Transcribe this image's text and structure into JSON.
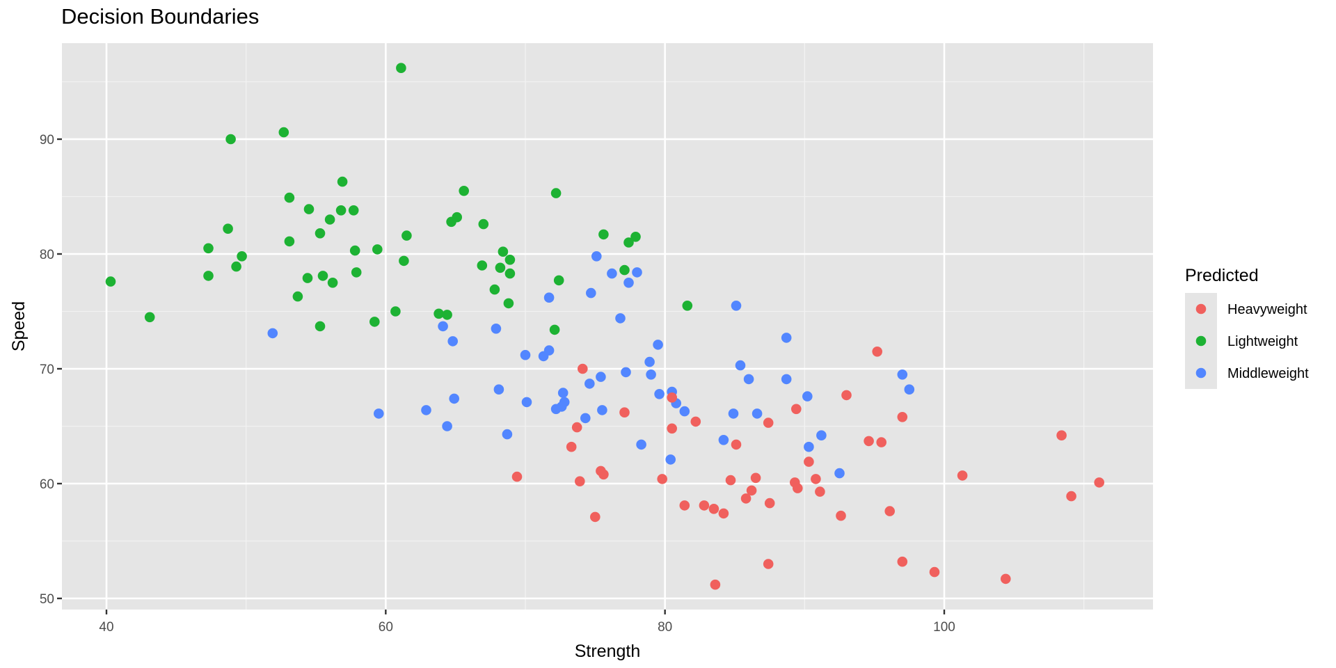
{
  "chart_data": {
    "type": "scatter",
    "title": "Decision Boundaries",
    "xlabel": "Strength",
    "ylabel": "Speed",
    "xlim": [
      36.5,
      114.5
    ],
    "ylim": [
      49.0,
      98.0
    ],
    "x_ticks": [
      40,
      60,
      80,
      100
    ],
    "y_ticks": [
      50,
      60,
      70,
      80,
      90
    ],
    "grid": true,
    "legend_position": "right",
    "legend": {
      "title": "Predicted",
      "entries": [
        {
          "name": "Heavyweight",
          "color": "#F8766D"
        },
        {
          "name": "Lightweight",
          "color": "#00BA38"
        },
        {
          "name": "Middleweight",
          "color": "#619CFF"
        }
      ]
    },
    "series": [
      {
        "name": "Lightweight",
        "color": "#1DB233",
        "points": [
          [
            40.3,
            77.6
          ],
          [
            43.1,
            74.5
          ],
          [
            47.3,
            80.5
          ],
          [
            47.3,
            78.1
          ],
          [
            48.7,
            82.2
          ],
          [
            48.9,
            90.0
          ],
          [
            49.3,
            78.9
          ],
          [
            49.7,
            79.8
          ],
          [
            52.7,
            90.6
          ],
          [
            53.1,
            84.9
          ],
          [
            53.1,
            81.1
          ],
          [
            53.7,
            76.3
          ],
          [
            54.4,
            77.9
          ],
          [
            54.5,
            83.9
          ],
          [
            55.3,
            81.8
          ],
          [
            55.3,
            73.7
          ],
          [
            55.5,
            78.1
          ],
          [
            56.0,
            83.0
          ],
          [
            56.2,
            77.5
          ],
          [
            56.8,
            83.8
          ],
          [
            56.9,
            86.3
          ],
          [
            57.7,
            83.8
          ],
          [
            57.8,
            80.3
          ],
          [
            57.9,
            78.4
          ],
          [
            59.2,
            74.1
          ],
          [
            59.4,
            80.4
          ],
          [
            60.7,
            75.0
          ],
          [
            61.1,
            96.2
          ],
          [
            61.3,
            79.4
          ],
          [
            61.5,
            81.6
          ],
          [
            63.8,
            74.8
          ],
          [
            64.4,
            74.7
          ],
          [
            64.7,
            82.8
          ],
          [
            65.1,
            83.2
          ],
          [
            65.6,
            85.5
          ],
          [
            66.9,
            79.0
          ],
          [
            67.0,
            82.6
          ],
          [
            67.8,
            76.9
          ],
          [
            68.2,
            78.8
          ],
          [
            68.4,
            80.2
          ],
          [
            68.8,
            75.7
          ],
          [
            68.9,
            79.5
          ],
          [
            68.9,
            78.3
          ],
          [
            72.1,
            73.4
          ],
          [
            72.2,
            85.3
          ],
          [
            72.4,
            77.7
          ],
          [
            75.6,
            81.7
          ],
          [
            77.1,
            78.6
          ],
          [
            77.4,
            81.0
          ],
          [
            77.9,
            81.5
          ],
          [
            81.6,
            75.5
          ]
        ]
      },
      {
        "name": "Middleweight",
        "color": "#5286FF",
        "points": [
          [
            51.9,
            73.1
          ],
          [
            59.5,
            66.1
          ],
          [
            62.9,
            66.4
          ],
          [
            64.1,
            73.7
          ],
          [
            64.4,
            65.0
          ],
          [
            64.8,
            72.4
          ],
          [
            64.9,
            67.4
          ],
          [
            67.9,
            73.5
          ],
          [
            68.1,
            68.2
          ],
          [
            68.7,
            64.3
          ],
          [
            70.0,
            71.2
          ],
          [
            70.1,
            67.1
          ],
          [
            71.3,
            71.1
          ],
          [
            71.7,
            71.6
          ],
          [
            71.7,
            76.2
          ],
          [
            72.2,
            66.5
          ],
          [
            72.6,
            66.7
          ],
          [
            72.7,
            67.9
          ],
          [
            72.8,
            67.1
          ],
          [
            74.3,
            65.7
          ],
          [
            74.6,
            68.7
          ],
          [
            74.7,
            76.6
          ],
          [
            75.1,
            79.8
          ],
          [
            75.4,
            69.3
          ],
          [
            75.5,
            66.4
          ],
          [
            76.2,
            78.3
          ],
          [
            76.8,
            74.4
          ],
          [
            77.2,
            69.7
          ],
          [
            77.4,
            77.5
          ],
          [
            78.0,
            78.4
          ],
          [
            78.3,
            63.4
          ],
          [
            78.9,
            70.6
          ],
          [
            79.0,
            69.5
          ],
          [
            79.5,
            72.1
          ],
          [
            79.6,
            67.8
          ],
          [
            80.4,
            62.1
          ],
          [
            80.5,
            68.0
          ],
          [
            80.8,
            67.0
          ],
          [
            81.4,
            66.3
          ],
          [
            84.2,
            63.8
          ],
          [
            84.9,
            66.1
          ],
          [
            85.1,
            75.5
          ],
          [
            85.4,
            70.3
          ],
          [
            86.0,
            69.1
          ],
          [
            86.6,
            66.1
          ],
          [
            88.7,
            72.7
          ],
          [
            88.7,
            69.1
          ],
          [
            90.2,
            67.6
          ],
          [
            90.3,
            63.2
          ],
          [
            91.2,
            64.2
          ],
          [
            92.5,
            60.9
          ],
          [
            97.0,
            69.5
          ],
          [
            97.5,
            68.2
          ]
        ]
      },
      {
        "name": "Heavyweight",
        "color": "#F0605D",
        "points": [
          [
            69.4,
            60.6
          ],
          [
            73.3,
            63.2
          ],
          [
            73.7,
            64.9
          ],
          [
            73.9,
            60.2
          ],
          [
            74.1,
            70.0
          ],
          [
            75.0,
            57.1
          ],
          [
            75.4,
            61.1
          ],
          [
            75.6,
            60.8
          ],
          [
            77.1,
            66.2
          ],
          [
            79.8,
            60.4
          ],
          [
            80.5,
            67.5
          ],
          [
            80.5,
            64.8
          ],
          [
            81.4,
            58.1
          ],
          [
            82.2,
            65.4
          ],
          [
            82.8,
            58.1
          ],
          [
            83.5,
            57.8
          ],
          [
            83.6,
            51.2
          ],
          [
            84.2,
            57.4
          ],
          [
            84.7,
            60.3
          ],
          [
            85.1,
            63.4
          ],
          [
            85.8,
            58.7
          ],
          [
            86.2,
            59.4
          ],
          [
            86.5,
            60.5
          ],
          [
            87.4,
            53.0
          ],
          [
            87.4,
            65.3
          ],
          [
            87.5,
            58.3
          ],
          [
            89.3,
            60.1
          ],
          [
            89.4,
            66.5
          ],
          [
            89.5,
            59.6
          ],
          [
            90.3,
            61.9
          ],
          [
            90.8,
            60.4
          ],
          [
            91.1,
            59.3
          ],
          [
            92.6,
            57.2
          ],
          [
            93.0,
            67.7
          ],
          [
            94.6,
            63.7
          ],
          [
            95.2,
            71.5
          ],
          [
            95.5,
            63.6
          ],
          [
            96.1,
            57.6
          ],
          [
            97.0,
            65.8
          ],
          [
            97.0,
            53.2
          ],
          [
            99.3,
            52.3
          ],
          [
            101.3,
            60.7
          ],
          [
            104.4,
            51.7
          ],
          [
            108.4,
            64.2
          ],
          [
            109.1,
            58.9
          ],
          [
            111.1,
            60.1
          ]
        ]
      }
    ]
  }
}
